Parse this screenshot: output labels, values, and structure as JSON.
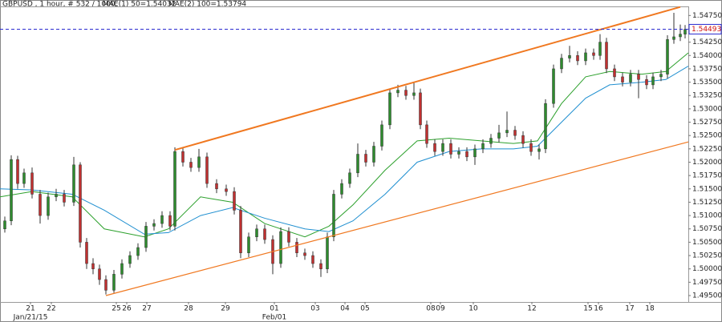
{
  "chart_data": {
    "type": "candlestick",
    "title": "GBPUSD , 1 hour, # 532 / 1000,",
    "xlim": [
      0,
      858
    ],
    "ylim": [
      1.4938,
      1.5492
    ],
    "yticks": [
      {
        "value": 1.495,
        "label": "1.49500"
      },
      {
        "value": 1.4975,
        "label": "1.49750"
      },
      {
        "value": 1.5,
        "label": "1.50000"
      },
      {
        "value": 1.5025,
        "label": "1.50250"
      },
      {
        "value": 1.505,
        "label": "1.50500"
      },
      {
        "value": 1.5075,
        "label": "1.50750"
      },
      {
        "value": 1.51,
        "label": "1.51000"
      },
      {
        "value": 1.5125,
        "label": "1.51250"
      },
      {
        "value": 1.515,
        "label": "1.51500"
      },
      {
        "value": 1.5175,
        "label": "1.51750"
      },
      {
        "value": 1.52,
        "label": "1.52000"
      },
      {
        "value": 1.5225,
        "label": "1.52250"
      },
      {
        "value": 1.525,
        "label": "1.52500"
      },
      {
        "value": 1.5275,
        "label": "1.52750"
      },
      {
        "value": 1.53,
        "label": "1.53000"
      },
      {
        "value": 1.5325,
        "label": "1.53250"
      },
      {
        "value": 1.535,
        "label": "1.53500"
      },
      {
        "value": 1.5375,
        "label": "1.53750"
      },
      {
        "value": 1.54,
        "label": "1.54000"
      },
      {
        "value": 1.5425,
        "label": "1.54250"
      },
      {
        "value": 1.545,
        "label": "1.54500"
      },
      {
        "value": 1.5475,
        "label": "1.54750"
      }
    ],
    "xticks": [
      {
        "value": 38,
        "label": "21"
      },
      {
        "value": 64,
        "label": "22"
      },
      {
        "value": 145,
        "label": "25"
      },
      {
        "value": 158,
        "label": "26"
      },
      {
        "value": 183,
        "label": "27"
      },
      {
        "value": 235,
        "label": "28"
      },
      {
        "value": 281,
        "label": "29"
      },
      {
        "value": 342,
        "label": "01"
      },
      {
        "value": 393,
        "label": "03"
      },
      {
        "value": 430,
        "label": "04"
      },
      {
        "value": 455,
        "label": "05"
      },
      {
        "value": 537,
        "label": "08"
      },
      {
        "value": 549,
        "label": "09"
      },
      {
        "value": 590,
        "label": "10"
      },
      {
        "value": 663,
        "label": "12"
      },
      {
        "value": 733,
        "label": "15"
      },
      {
        "value": 746,
        "label": "16"
      },
      {
        "value": 785,
        "label": "17"
      },
      {
        "value": 810,
        "label": "18"
      }
    ],
    "x_sublabels": [
      {
        "value": 38,
        "label": "Jan/21/15"
      },
      {
        "value": 342,
        "label": "Feb/01"
      }
    ],
    "up_color": "#2e8b2e",
    "down_color": "#c03030",
    "candles": [
      [
        6,
        1.5075,
        1.5098,
        1.5068,
        1.509
      ],
      [
        14,
        1.509,
        1.5213,
        1.5082,
        1.5205
      ],
      [
        22,
        1.5205,
        1.5212,
        1.515,
        1.516
      ],
      [
        30,
        1.516,
        1.5188,
        1.5152,
        1.518
      ],
      [
        40,
        1.518,
        1.519,
        1.5132,
        1.514
      ],
      [
        50,
        1.514,
        1.5148,
        1.5085,
        1.51
      ],
      [
        60,
        1.51,
        1.5143,
        1.5092,
        1.5135
      ],
      [
        70,
        1.5135,
        1.515,
        1.5127,
        1.514
      ],
      [
        80,
        1.514,
        1.5148,
        1.5117,
        1.5125
      ],
      [
        92,
        1.5125,
        1.521,
        1.5118,
        1.5195
      ],
      [
        100,
        1.5195,
        1.52,
        1.504,
        1.505
      ],
      [
        108,
        1.505,
        1.5058,
        1.5,
        1.501
      ],
      [
        116,
        1.501,
        1.502,
        1.499,
        1.5
      ],
      [
        124,
        1.5,
        1.5008,
        1.497,
        1.498
      ],
      [
        132,
        1.498,
        1.4988,
        1.4952,
        1.496
      ],
      [
        142,
        1.496,
        1.4998,
        1.4955,
        1.499
      ],
      [
        152,
        1.499,
        1.5018,
        1.4982,
        1.501
      ],
      [
        162,
        1.501,
        1.5033,
        1.5002,
        1.5025
      ],
      [
        172,
        1.5025,
        1.5048,
        1.5017,
        1.504
      ],
      [
        182,
        1.504,
        1.5088,
        1.5032,
        1.508
      ],
      [
        192,
        1.508,
        1.5093,
        1.5072,
        1.5085
      ],
      [
        202,
        1.5085,
        1.5108,
        1.5077,
        1.51
      ],
      [
        212,
        1.51,
        1.5108,
        1.5072,
        1.508
      ],
      [
        218,
        1.508,
        1.5228,
        1.5072,
        1.522
      ],
      [
        228,
        1.522,
        1.5228,
        1.5192,
        1.52
      ],
      [
        238,
        1.52,
        1.5208,
        1.5182,
        1.519
      ],
      [
        248,
        1.519,
        1.5225,
        1.5182,
        1.521
      ],
      [
        258,
        1.521,
        1.5218,
        1.5152,
        1.516
      ],
      [
        270,
        1.516,
        1.5168,
        1.5142,
        1.515
      ],
      [
        282,
        1.515,
        1.5158,
        1.5137,
        1.5145
      ],
      [
        292,
        1.5145,
        1.5153,
        1.5102,
        1.511
      ],
      [
        300,
        1.511,
        1.5118,
        1.502,
        1.503
      ],
      [
        310,
        1.503,
        1.5068,
        1.5022,
        1.506
      ],
      [
        320,
        1.506,
        1.5083,
        1.5052,
        1.5075
      ],
      [
        330,
        1.5075,
        1.5083,
        1.5047,
        1.5055
      ],
      [
        340,
        1.5055,
        1.5063,
        1.499,
        1.501
      ],
      [
        350,
        1.501,
        1.5078,
        1.5002,
        1.507
      ],
      [
        360,
        1.507,
        1.5078,
        1.5042,
        1.505
      ],
      [
        370,
        1.505,
        1.5058,
        1.5022,
        1.503
      ],
      [
        380,
        1.503,
        1.5038,
        1.5017,
        1.5025
      ],
      [
        390,
        1.5025,
        1.5033,
        1.5002,
        1.501
      ],
      [
        400,
        1.501,
        1.5018,
        1.4985,
        1.5
      ],
      [
        408,
        1.5,
        1.5068,
        1.4992,
        1.506
      ],
      [
        416,
        1.506,
        1.5148,
        1.5052,
        1.514
      ],
      [
        426,
        1.514,
        1.5168,
        1.5132,
        1.516
      ],
      [
        436,
        1.516,
        1.5188,
        1.5152,
        1.518
      ],
      [
        446,
        1.518,
        1.5235,
        1.5172,
        1.5215
      ],
      [
        456,
        1.5215,
        1.5223,
        1.5192,
        1.52
      ],
      [
        466,
        1.52,
        1.5238,
        1.5192,
        1.523
      ],
      [
        476,
        1.523,
        1.5278,
        1.5222,
        1.527
      ],
      [
        486,
        1.527,
        1.5338,
        1.5262,
        1.533
      ],
      [
        496,
        1.533,
        1.5345,
        1.5322,
        1.5335
      ],
      [
        506,
        1.5335,
        1.5343,
        1.5317,
        1.5325
      ],
      [
        516,
        1.5325,
        1.535,
        1.5317,
        1.533
      ],
      [
        524,
        1.533,
        1.5338,
        1.5262,
        1.527
      ],
      [
        532,
        1.527,
        1.5278,
        1.5227,
        1.5235
      ],
      [
        542,
        1.5235,
        1.5243,
        1.5212,
        1.522
      ],
      [
        552,
        1.522,
        1.5243,
        1.5212,
        1.5235
      ],
      [
        562,
        1.5235,
        1.5243,
        1.5207,
        1.5215
      ],
      [
        572,
        1.5215,
        1.5228,
        1.5207,
        1.522
      ],
      [
        582,
        1.522,
        1.5228,
        1.5202,
        1.521
      ],
      [
        592,
        1.521,
        1.5233,
        1.5195,
        1.5225
      ],
      [
        602,
        1.5225,
        1.5243,
        1.5217,
        1.5235
      ],
      [
        612,
        1.5235,
        1.5253,
        1.5227,
        1.5245
      ],
      [
        622,
        1.5245,
        1.527,
        1.5237,
        1.5255
      ],
      [
        632,
        1.5255,
        1.5295,
        1.5247,
        1.526
      ],
      [
        642,
        1.526,
        1.5268,
        1.5242,
        1.525
      ],
      [
        652,
        1.525,
        1.5258,
        1.5227,
        1.5235
      ],
      [
        662,
        1.5235,
        1.5243,
        1.5212,
        1.522
      ],
      [
        672,
        1.522,
        1.5233,
        1.5205,
        1.5225
      ],
      [
        680,
        1.5225,
        1.5318,
        1.5217,
        1.531
      ],
      [
        690,
        1.531,
        1.5383,
        1.5302,
        1.5375
      ],
      [
        700,
        1.5375,
        1.5403,
        1.5367,
        1.5395
      ],
      [
        710,
        1.5395,
        1.5418,
        1.5387,
        1.54
      ],
      [
        720,
        1.54,
        1.5408,
        1.5382,
        1.539
      ],
      [
        730,
        1.539,
        1.5413,
        1.5382,
        1.5405
      ],
      [
        740,
        1.5405,
        1.5413,
        1.5392,
        1.54
      ],
      [
        748,
        1.54,
        1.544,
        1.5392,
        1.5425
      ],
      [
        756,
        1.5425,
        1.5433,
        1.5367,
        1.5375
      ],
      [
        766,
        1.5375,
        1.5383,
        1.5352,
        1.536
      ],
      [
        776,
        1.536,
        1.5368,
        1.5342,
        1.535
      ],
      [
        786,
        1.535,
        1.5373,
        1.5342,
        1.5365
      ],
      [
        796,
        1.5365,
        1.5373,
        1.532,
        1.5355
      ],
      [
        806,
        1.5355,
        1.5363,
        1.5337,
        1.5345
      ],
      [
        814,
        1.5345,
        1.5368,
        1.5337,
        1.536
      ],
      [
        824,
        1.536,
        1.5373,
        1.5352,
        1.5365
      ],
      [
        832,
        1.5365,
        1.5438,
        1.5357,
        1.543
      ],
      [
        840,
        1.543,
        1.548,
        1.5422,
        1.5435
      ],
      [
        848,
        1.5435,
        1.5458,
        1.5427,
        1.544
      ],
      [
        854,
        1.544,
        1.5457,
        1.5432,
        1.5449
      ]
    ],
    "series": [
      {
        "name": "MAE(1) 50=1.54032",
        "color": "#2ca02c",
        "x": [
          0,
          40,
          90,
          130,
          180,
          210,
          250,
          290,
          330,
          380,
          410,
          440,
          480,
          520,
          560,
          600,
          640,
          670,
          700,
          730,
          760,
          800,
          830,
          858
        ],
        "values": [
          1.5135,
          1.5145,
          1.5135,
          1.5075,
          1.506,
          1.5075,
          1.5135,
          1.5125,
          1.5085,
          1.506,
          1.508,
          1.512,
          1.5185,
          1.524,
          1.5245,
          1.524,
          1.5235,
          1.524,
          1.531,
          1.536,
          1.537,
          1.5365,
          1.537,
          1.5405
        ]
      },
      {
        "name": "MAE(2) 100=1.53794",
        "color": "#1f8fd0",
        "x": [
          0,
          40,
          90,
          130,
          180,
          210,
          250,
          290,
          330,
          380,
          410,
          440,
          480,
          520,
          560,
          600,
          640,
          670,
          700,
          730,
          760,
          800,
          830,
          858
        ],
        "values": [
          1.515,
          1.5148,
          1.514,
          1.511,
          1.5065,
          1.5068,
          1.51,
          1.5115,
          1.5095,
          1.5075,
          1.507,
          1.509,
          1.514,
          1.52,
          1.522,
          1.5225,
          1.5225,
          1.523,
          1.5275,
          1.532,
          1.5345,
          1.535,
          1.5355,
          1.538
        ]
      }
    ],
    "trendlines": [
      {
        "color": "#f07820",
        "x": [
          218,
          848
        ],
        "values": [
          1.5223,
          1.5491
        ]
      },
      {
        "color": "#f07820",
        "x": [
          132,
          858
        ],
        "values": [
          1.495,
          1.5238
        ]
      }
    ],
    "price_line": {
      "value": 1.54493,
      "color": "#2b2bd0",
      "label_color": "#d01010"
    }
  }
}
